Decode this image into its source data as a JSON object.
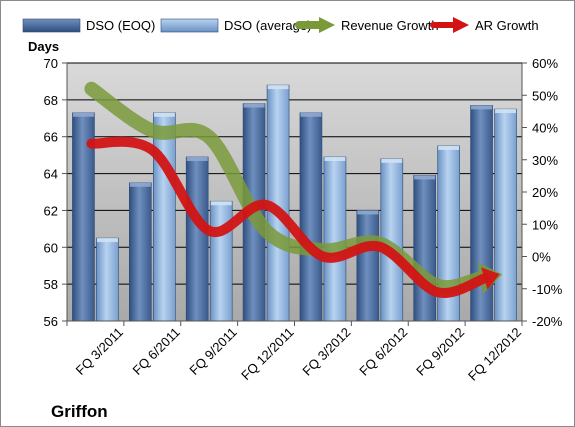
{
  "chart_data": {
    "type": "bar",
    "company": "Griffon",
    "categories": [
      "FQ 3/2011",
      "FQ 6/2011",
      "FQ 9/2011",
      "FQ 12/2011",
      "FQ 3/2012",
      "FQ 6/2012",
      "FQ 9/2012",
      "FQ 12/2012"
    ],
    "series": [
      {
        "name": "DSO (EOQ)",
        "kind": "bar",
        "axis": "left",
        "color": "#4a6a9a",
        "values": [
          67.3,
          63.5,
          64.9,
          67.8,
          67.3,
          62.0,
          63.9,
          67.7
        ]
      },
      {
        "name": "DSO (average)",
        "kind": "bar",
        "axis": "left",
        "color": "#8fb1d9",
        "values": [
          60.5,
          67.3,
          62.5,
          68.8,
          64.9,
          64.8,
          65.5,
          67.5
        ]
      },
      {
        "name": "Revenue Growth",
        "kind": "line-arrow",
        "axis": "right",
        "color": "#7a9a3a",
        "values": [
          0.52,
          0.39,
          0.37,
          0.08,
          0.02,
          0.04,
          -0.09,
          -0.06
        ]
      },
      {
        "name": "AR Growth",
        "kind": "line-arrow",
        "axis": "right",
        "color": "#d21414",
        "values": [
          0.35,
          0.33,
          0.08,
          0.16,
          0.0,
          0.03,
          -0.11,
          -0.06
        ]
      }
    ],
    "ylabel": "Days",
    "ylim": [
      56,
      70
    ],
    "yticks": [
      56,
      58,
      60,
      62,
      64,
      66,
      68,
      70
    ],
    "y2lim": [
      -0.2,
      0.6
    ],
    "y2ticks": [
      "-20%",
      "-10%",
      "0%",
      "10%",
      "20%",
      "30%",
      "40%",
      "50%",
      "60%"
    ],
    "grid": true,
    "legend": "top"
  }
}
